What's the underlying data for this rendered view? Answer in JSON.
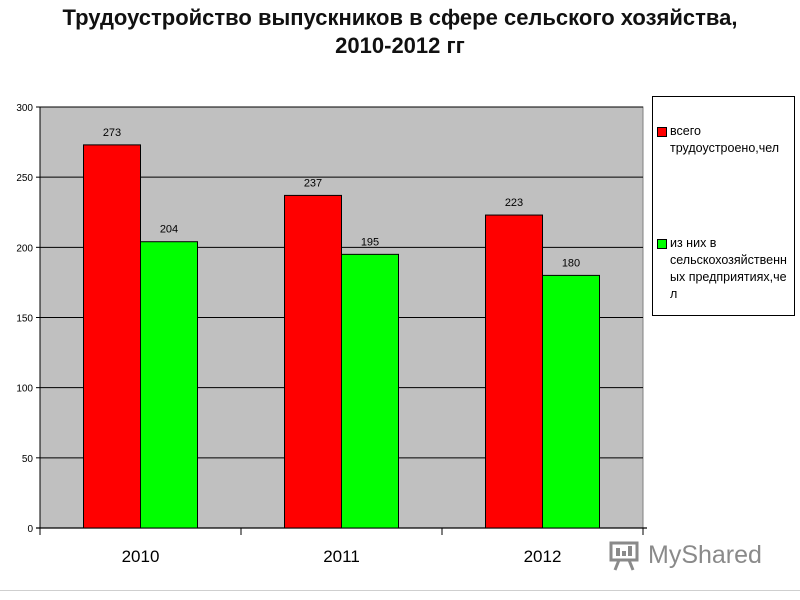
{
  "chart_data": {
    "type": "bar",
    "title_lines": [
      "Трудоустройство выпускников в сфере сельского хозяйства,",
      "2010-2012 гг"
    ],
    "categories": [
      "2010",
      "2011",
      "2012"
    ],
    "series": [
      {
        "name": "всего трудоустроено,чел",
        "color": "#ff0000",
        "values": [
          273,
          237,
          223
        ]
      },
      {
        "name": "из них в сельскохозяйственных предприятиях,чел",
        "color": "#00ff00",
        "values": [
          204,
          195,
          180
        ]
      }
    ],
    "ylim": [
      0,
      300
    ],
    "yticks": [
      0,
      50,
      100,
      150,
      200,
      250,
      300
    ],
    "grid": true,
    "plot_background": "#c0c0c0",
    "legend_position": "right",
    "data_labels": true
  },
  "legend": {
    "items": [
      {
        "lines": [
          "всего",
          "трудоустроено,чел"
        ],
        "color": "#ff0000"
      },
      {
        "lines": [
          "из них в",
          "сельскохозяйственн",
          "ых предприятиях,чел"
        ],
        "color": "#00ff00"
      }
    ]
  },
  "watermark": {
    "text": "MyShared"
  }
}
